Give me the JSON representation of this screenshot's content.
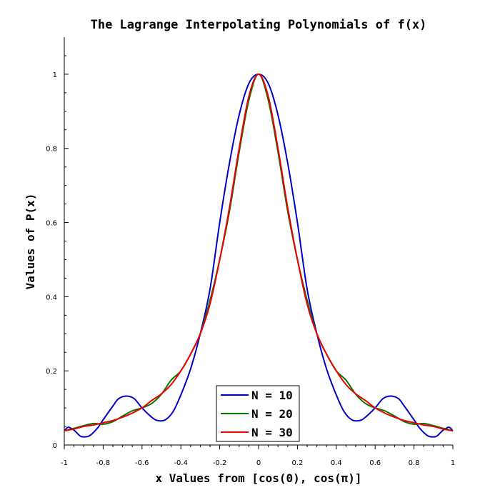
{
  "chart_data": {
    "type": "line",
    "title": "The Lagrange Interpolating Polynomials of f(x)",
    "xlabel": "x Values from [cos(0), cos(π)]",
    "ylabel": "Values of P(x)",
    "xlim": [
      -1,
      1
    ],
    "ylim": [
      0,
      1.1
    ],
    "x_ticks": [
      "-1",
      "-0.8",
      "-0.6",
      "-0.4",
      "-0.2",
      "0",
      "0.2",
      "0.4",
      "0.6",
      "0.8",
      "1"
    ],
    "y_ticks": [
      "0",
      "0.2",
      "0.4",
      "0.6",
      "0.8",
      "1"
    ],
    "legend_position": "bottom-center",
    "grid": false,
    "series": [
      {
        "name": "N = 10",
        "color": "#0000cc",
        "x": [
          -1,
          -0.98,
          -0.95,
          -0.92,
          -0.9,
          -0.87,
          -0.83,
          -0.8,
          -0.75,
          -0.72,
          -0.68,
          -0.64,
          -0.6,
          -0.55,
          -0.52,
          -0.48,
          -0.44,
          -0.4,
          -0.35,
          -0.3,
          -0.25,
          -0.2,
          -0.15,
          -0.1,
          -0.05,
          0,
          0.05,
          0.1,
          0.15,
          0.2,
          0.25,
          0.3,
          0.35,
          0.4,
          0.44,
          0.48,
          0.52,
          0.55,
          0.6,
          0.64,
          0.68,
          0.72,
          0.75,
          0.8,
          0.83,
          0.87,
          0.9,
          0.92,
          0.95,
          0.98,
          1
        ],
        "y": [
          0.038,
          0.048,
          0.04,
          0.025,
          0.022,
          0.025,
          0.045,
          0.068,
          0.105,
          0.125,
          0.132,
          0.125,
          0.1,
          0.075,
          0.066,
          0.068,
          0.09,
          0.135,
          0.205,
          0.3,
          0.42,
          0.6,
          0.76,
          0.89,
          0.975,
          1.0,
          0.975,
          0.89,
          0.76,
          0.6,
          0.42,
          0.3,
          0.205,
          0.135,
          0.09,
          0.068,
          0.066,
          0.075,
          0.1,
          0.125,
          0.132,
          0.125,
          0.105,
          0.068,
          0.045,
          0.025,
          0.022,
          0.025,
          0.04,
          0.048,
          0.038
        ]
      },
      {
        "name": "N = 20",
        "color": "#007700",
        "x": [
          -1,
          -0.95,
          -0.9,
          -0.85,
          -0.8,
          -0.75,
          -0.7,
          -0.65,
          -0.6,
          -0.55,
          -0.5,
          -0.45,
          -0.4,
          -0.35,
          -0.3,
          -0.25,
          -0.2,
          -0.15,
          -0.1,
          -0.05,
          0,
          0.05,
          0.1,
          0.15,
          0.2,
          0.25,
          0.3,
          0.35,
          0.4,
          0.45,
          0.5,
          0.55,
          0.6,
          0.65,
          0.7,
          0.75,
          0.8,
          0.85,
          0.9,
          0.95,
          1
        ],
        "y": [
          0.038,
          0.045,
          0.052,
          0.058,
          0.056,
          0.063,
          0.078,
          0.092,
          0.1,
          0.112,
          0.137,
          0.175,
          0.2,
          0.245,
          0.3,
          0.39,
          0.5,
          0.63,
          0.79,
          0.93,
          1.0,
          0.93,
          0.79,
          0.63,
          0.5,
          0.39,
          0.3,
          0.245,
          0.2,
          0.175,
          0.137,
          0.112,
          0.1,
          0.092,
          0.078,
          0.063,
          0.056,
          0.058,
          0.052,
          0.045,
          0.038
        ]
      },
      {
        "name": "N = 30",
        "color": "#ee0000",
        "x": [
          -1,
          -0.95,
          -0.9,
          -0.85,
          -0.8,
          -0.75,
          -0.7,
          -0.65,
          -0.6,
          -0.55,
          -0.5,
          -0.45,
          -0.4,
          -0.35,
          -0.3,
          -0.25,
          -0.2,
          -0.15,
          -0.1,
          -0.05,
          0,
          0.05,
          0.1,
          0.15,
          0.2,
          0.25,
          0.3,
          0.35,
          0.4,
          0.45,
          0.5,
          0.55,
          0.6,
          0.65,
          0.7,
          0.75,
          0.8,
          0.85,
          0.9,
          0.95,
          1
        ],
        "y": [
          0.038,
          0.043,
          0.05,
          0.054,
          0.06,
          0.066,
          0.075,
          0.086,
          0.1,
          0.12,
          0.138,
          0.163,
          0.2,
          0.245,
          0.3,
          0.38,
          0.5,
          0.64,
          0.8,
          0.94,
          1.0,
          0.94,
          0.8,
          0.64,
          0.5,
          0.38,
          0.3,
          0.245,
          0.2,
          0.163,
          0.138,
          0.12,
          0.1,
          0.086,
          0.075,
          0.066,
          0.06,
          0.054,
          0.05,
          0.043,
          0.038
        ]
      }
    ]
  }
}
